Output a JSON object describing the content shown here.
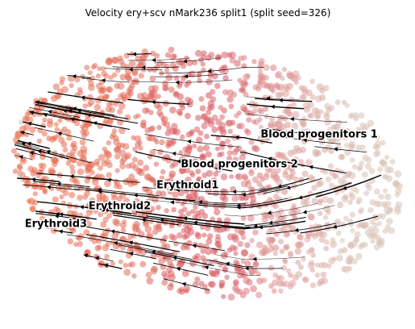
{
  "chart_data": {
    "type": "scatter",
    "title": "Velocity ery+scv nMark236 split1 (split seed=326)",
    "xlabel": "",
    "ylabel": "",
    "axes_visible": false,
    "grid": false,
    "overlay": "velocity streamlines (black, with arrowheads)",
    "colors": {
      "Blood progenitors 1": "#d8c4b8",
      "Blood progenitors 2": "#e09a98",
      "Erythroid1": "#d85560",
      "Erythroid2": "#e4705c",
      "Erythroid3": "#ee6a4a"
    },
    "clusters": [
      {
        "label": "Blood progenitors 1",
        "x": 0.78,
        "y": 0.62
      },
      {
        "label": "Blood progenitors 2",
        "x": 0.58,
        "y": 0.52
      },
      {
        "label": "Erythroid1",
        "x": 0.45,
        "y": 0.45
      },
      {
        "label": "Erythroid2",
        "x": 0.28,
        "y": 0.38
      },
      {
        "label": "Erythroid3",
        "x": 0.12,
        "y": 0.32
      }
    ]
  }
}
